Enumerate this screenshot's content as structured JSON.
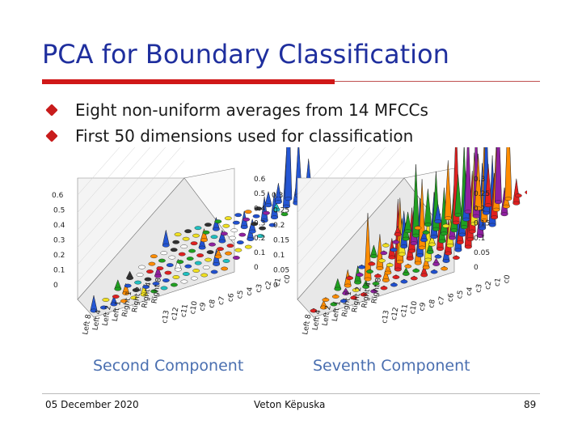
{
  "slide": {
    "title": "PCA for Boundary Classification",
    "bullets": [
      "Eight non-uniform averages from 14 MFCCs",
      "First 50 dimensions used for classification"
    ],
    "accent_color": "#d01818",
    "title_color": "#1f2f9e"
  },
  "figure": {
    "left": {
      "caption": "Second Component",
      "z_ticks_left": [
        "0.6",
        "0.5",
        "0.4",
        "0.3",
        "0.2",
        "0.1",
        "0"
      ],
      "z_ticks_right": [
        "0.6",
        "0.5",
        "0.4",
        "0.3",
        "0.2",
        "0.1",
        "0"
      ],
      "row_labels": [
        "Left 8",
        "Left 4",
        "Left 2",
        "Left 1",
        "Right 1",
        "Right 2",
        "Right 4",
        "Right 8"
      ],
      "col_labels": [
        "c13",
        "c12",
        "c11",
        "c10",
        "c9",
        "c8",
        "c7",
        "c6",
        "c5",
        "c4",
        "c3",
        "c2",
        "c1",
        "c0"
      ]
    },
    "right": {
      "caption": "Seventh Component",
      "z_ticks_left": [
        "0.3",
        "0.25",
        "0.2",
        "0.15",
        "0.1",
        "0.05",
        "0"
      ],
      "z_ticks_right": [
        "0.3",
        "0.25",
        "0.2",
        "0.15",
        "0.1",
        "0.05",
        "0"
      ],
      "row_labels": [
        "Left 8",
        "Left 4",
        "Left 2",
        "Left 1",
        "Right 1",
        "Right 2",
        "Right 4",
        "Right 8"
      ],
      "col_labels": [
        "c13",
        "c12",
        "c11",
        "c10",
        "c9",
        "c8",
        "c7",
        "c6",
        "c5",
        "c4",
        "c3",
        "c2",
        "c1",
        "c0"
      ]
    },
    "caption_color": "#4a6fb0"
  },
  "footer": {
    "date": "05 December 2020",
    "author": "Veton Këpuska",
    "page": "89"
  }
}
